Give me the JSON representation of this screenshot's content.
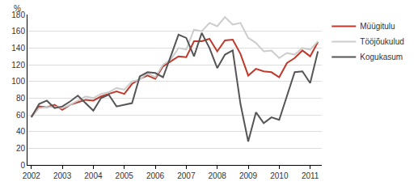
{
  "chart_data": {
    "type": "line",
    "y_label": "%",
    "categories": [
      "2002",
      null,
      null,
      null,
      "2003",
      null,
      null,
      null,
      "2004",
      null,
      null,
      null,
      "2005",
      null,
      null,
      null,
      "2006",
      null,
      null,
      null,
      "2007",
      null,
      null,
      null,
      "2008",
      null,
      null,
      null,
      "2009",
      null,
      null,
      null,
      "2010",
      null,
      null,
      null,
      "2011",
      null
    ],
    "series": [
      {
        "name": "Müügitulu",
        "color": "#c0392b",
        "values": [
          58,
          70,
          69,
          72,
          66,
          72,
          75,
          78,
          77,
          82,
          85,
          88,
          85,
          97,
          103,
          107,
          103,
          118,
          124,
          130,
          129,
          148,
          148,
          151,
          136,
          149,
          150,
          133,
          107,
          115,
          112,
          111,
          105,
          122,
          128,
          137,
          130,
          147
        ]
      },
      {
        "name": "Tööjõukulud",
        "color": "#cccccc",
        "values": [
          57,
          68,
          69,
          70,
          68,
          72,
          77,
          82,
          80,
          85,
          87,
          92,
          90,
          100,
          102,
          110,
          105,
          120,
          126,
          140,
          138,
          162,
          160,
          170,
          166,
          177,
          168,
          170,
          152,
          146,
          136,
          137,
          128,
          134,
          132,
          140,
          138,
          148
        ]
      },
      {
        "name": "Kogukasum",
        "color": "#555555",
        "values": [
          57,
          73,
          77,
          68,
          70,
          76,
          83,
          74,
          65,
          80,
          84,
          70,
          72,
          74,
          106,
          111,
          110,
          105,
          130,
          156,
          152,
          130,
          158,
          140,
          116,
          132,
          137,
          73,
          28,
          63,
          50,
          57,
          54,
          82,
          111,
          112,
          98,
          136
        ]
      }
    ],
    "ylim": [
      0,
      180
    ],
    "yticks": [
      0,
      20,
      40,
      60,
      80,
      100,
      120,
      140,
      160,
      180
    ],
    "grid": true,
    "legend": "right"
  }
}
